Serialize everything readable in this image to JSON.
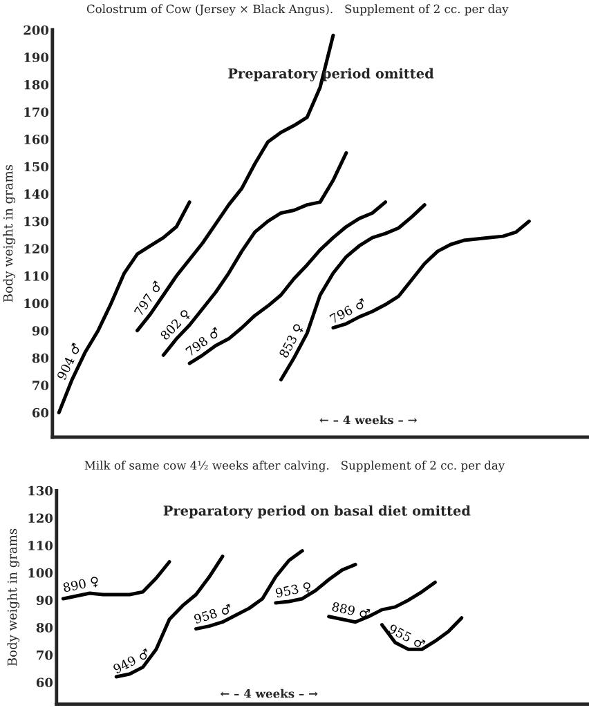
{
  "chart_data": [
    {
      "type": "line",
      "title": "Colostrum of Cow (Jersey × Black Angus).   Supplement of 2 cc. per day",
      "ylabel": "Body weight in grams",
      "line_style": "solid",
      "tick_labels": "y",
      "categories": [
        null,
        null,
        null,
        null,
        null,
        null,
        null,
        null,
        null,
        null,
        null,
        null,
        null,
        null,
        null,
        null,
        null,
        null,
        null,
        null,
        null,
        null,
        null,
        null,
        null,
        null,
        null,
        null,
        null,
        null,
        null,
        null,
        null,
        null,
        null,
        null,
        null,
        null,
        null,
        null,
        null
      ],
      "ylim": [
        51,
        200
      ],
      "yticks": [
        60,
        70,
        80,
        90,
        100,
        110,
        120,
        130,
        140,
        150,
        160,
        170,
        180,
        190,
        200
      ],
      "annotations": [
        "Preparatory period omitted",
        "← – 4 weeks – →"
      ],
      "series": [
        {
          "name": "904 ♂",
          "color": "#000000",
          "values": [
            60,
            72,
            82,
            90,
            100,
            111,
            118,
            121,
            124,
            128,
            137,
            null,
            null,
            null,
            null,
            null,
            null,
            null,
            null,
            null,
            null,
            null,
            null,
            null,
            null,
            null,
            null,
            null,
            null,
            null,
            null,
            null,
            null,
            null,
            null,
            null,
            null,
            null,
            null,
            null,
            null
          ]
        },
        {
          "name": "797 ♂",
          "color": "#000000",
          "values": [
            null,
            null,
            null,
            null,
            null,
            null,
            90,
            96,
            103,
            110,
            116,
            122,
            129,
            136,
            142,
            151,
            159,
            162.5,
            165,
            168,
            179,
            198,
            null,
            null,
            null,
            null,
            null,
            null,
            null,
            null,
            null,
            null,
            null,
            null,
            null,
            null,
            null,
            null,
            null,
            null,
            null
          ]
        },
        {
          "name": "802 ♀",
          "color": "#000000",
          "values": [
            null,
            null,
            null,
            null,
            null,
            null,
            null,
            null,
            81,
            87,
            92,
            98,
            104,
            111,
            119,
            126,
            130,
            133,
            134,
            136,
            137,
            145,
            155,
            null,
            null,
            null,
            null,
            null,
            null,
            null,
            null,
            null,
            null,
            null,
            null,
            null,
            null,
            null,
            null,
            null,
            null
          ]
        },
        {
          "name": "798 ♂",
          "color": "#000000",
          "values": [
            null,
            null,
            null,
            null,
            null,
            null,
            null,
            null,
            null,
            null,
            78,
            81,
            84.5,
            87,
            91,
            95.5,
            99,
            103,
            109,
            114,
            119.5,
            124,
            128,
            131,
            133,
            137,
            null,
            null,
            null,
            null,
            null,
            null,
            null,
            null,
            null,
            null,
            null,
            null,
            null,
            null,
            null
          ]
        },
        {
          "name": "853 ♀",
          "color": "#000000",
          "values": [
            null,
            null,
            null,
            null,
            null,
            null,
            null,
            null,
            null,
            null,
            null,
            null,
            null,
            null,
            null,
            null,
            null,
            72,
            80,
            89,
            103,
            111,
            117,
            121,
            124,
            125.5,
            127.5,
            131.5,
            136,
            null,
            null,
            null,
            null,
            null,
            null,
            null,
            null,
            null,
            null,
            null,
            null
          ]
        },
        {
          "name": "796 ♂",
          "color": "#000000",
          "values": [
            null,
            null,
            null,
            null,
            null,
            null,
            null,
            null,
            null,
            null,
            null,
            null,
            null,
            null,
            null,
            null,
            null,
            null,
            null,
            null,
            null,
            91,
            92.5,
            95,
            97,
            99.5,
            102.5,
            108.5,
            114.5,
            119,
            121.5,
            123,
            123.5,
            124,
            124.5,
            126,
            130,
            null,
            null,
            null,
            null
          ]
        }
      ]
    },
    {
      "type": "line",
      "title": "Milk of same cow 4½ weeks after calving.   Supplement of 2 cc. per day",
      "ylabel": "Body weight in grams",
      "line_style": "solid",
      "tick_labels": "y",
      "categories": [
        null,
        null,
        null,
        null,
        null,
        null,
        null,
        null,
        null,
        null,
        null,
        null,
        null,
        null,
        null,
        null,
        null,
        null,
        null,
        null,
        null,
        null,
        null,
        null,
        null,
        null,
        null,
        null,
        null,
        null,
        null,
        null,
        null,
        null,
        null,
        null,
        null,
        null,
        null,
        null
      ],
      "ylim": [
        52,
        130
      ],
      "yticks": [
        60,
        70,
        80,
        90,
        100,
        110,
        120,
        130
      ],
      "annotations": [
        "Preparatory period on basal diet omitted",
        "← – 4 weeks – →"
      ],
      "series": [
        {
          "name": "890 ♀",
          "color": "#000000",
          "values": [
            90.5,
            91.5,
            92.5,
            92,
            92,
            92,
            93,
            98,
            104,
            null,
            null,
            null,
            null,
            null,
            null,
            null,
            null,
            null,
            null,
            null,
            null,
            null,
            null,
            null,
            null,
            null,
            null,
            null,
            null,
            null,
            null,
            null,
            null,
            null,
            null,
            null,
            null,
            null,
            null,
            null
          ]
        },
        {
          "name": "949 ♂",
          "color": "#000000",
          "values": [
            null,
            null,
            null,
            null,
            62,
            63,
            65.5,
            72,
            83,
            88,
            92,
            98.5,
            106,
            null,
            null,
            null,
            null,
            null,
            null,
            null,
            null,
            null,
            null,
            null,
            null,
            null,
            null,
            null,
            null,
            null,
            null,
            null,
            null,
            null,
            null,
            null,
            null,
            null,
            null,
            null
          ]
        },
        {
          "name": "958 ♂",
          "color": "#000000",
          "values": [
            null,
            null,
            null,
            null,
            null,
            null,
            null,
            null,
            null,
            null,
            79.5,
            80.5,
            82,
            84.5,
            87,
            90.5,
            98.5,
            104.5,
            108,
            null,
            null,
            null,
            null,
            null,
            null,
            null,
            null,
            null,
            null,
            null,
            null,
            null,
            null,
            null,
            null,
            null,
            null,
            null,
            null,
            null
          ]
        },
        {
          "name": "953 ♀",
          "color": "#000000",
          "values": [
            null,
            null,
            null,
            null,
            null,
            null,
            null,
            null,
            null,
            null,
            null,
            null,
            null,
            null,
            null,
            null,
            89,
            89.5,
            90.5,
            93.5,
            97.5,
            101,
            103,
            null,
            null,
            null,
            null,
            null,
            null,
            null,
            null,
            null,
            null,
            null,
            null,
            null,
            null,
            null,
            null,
            null
          ]
        },
        {
          "name": "889 ♂",
          "color": "#000000",
          "values": [
            null,
            null,
            null,
            null,
            null,
            null,
            null,
            null,
            null,
            null,
            null,
            null,
            null,
            null,
            null,
            null,
            null,
            null,
            null,
            null,
            84,
            83,
            82,
            84,
            86.5,
            87.5,
            90,
            93,
            96.5,
            null,
            null,
            null,
            null,
            null,
            null,
            null,
            null,
            null,
            null,
            null
          ]
        },
        {
          "name": "955 ♂",
          "color": "#000000",
          "values": [
            null,
            null,
            null,
            null,
            null,
            null,
            null,
            null,
            null,
            null,
            null,
            null,
            null,
            null,
            null,
            null,
            null,
            null,
            null,
            null,
            null,
            null,
            null,
            null,
            81,
            74.5,
            72,
            72,
            75,
            78.5,
            83.5,
            null,
            null,
            null,
            null,
            null,
            null,
            null,
            null,
            null
          ]
        }
      ]
    }
  ]
}
